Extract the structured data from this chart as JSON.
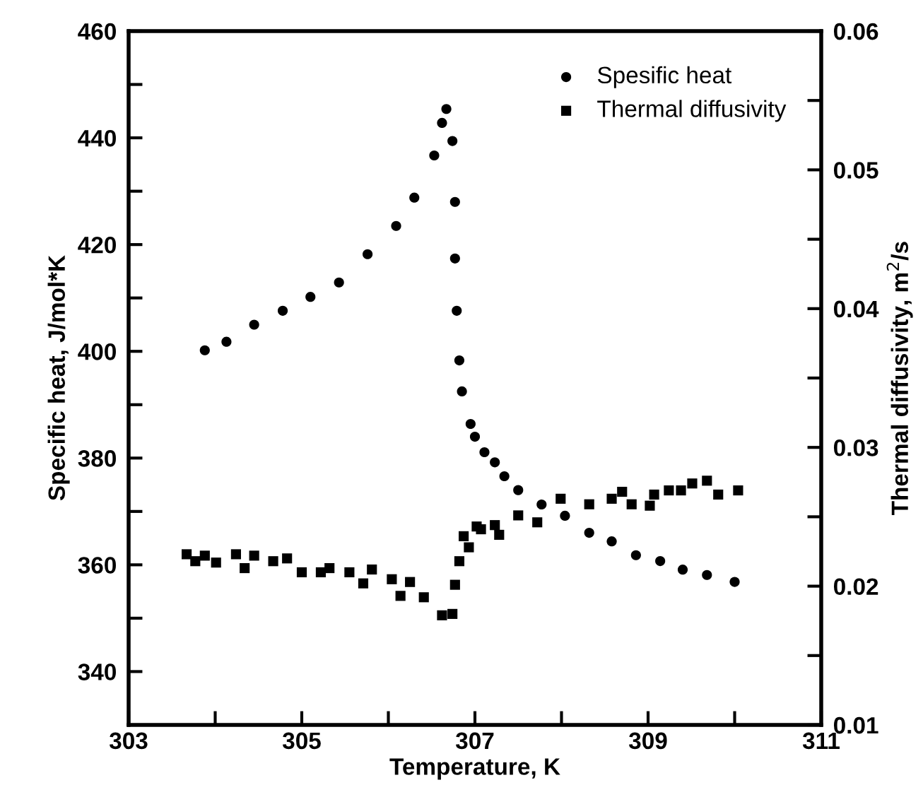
{
  "chart_data": {
    "type": "scatter",
    "xlabel": "Temperature, K",
    "ylabel": "Specific heat, J/mol*K",
    "y2label": "Thermal diffusivity, m$^{2}$/s",
    "xlim": [
      303,
      311
    ],
    "xticks": [
      303,
      {
        "value": 304,
        "label": null
      },
      305,
      {
        "value": 306,
        "label": null
      },
      307,
      {
        "value": 308,
        "label": null
      },
      309,
      {
        "value": 310,
        "label": null
      },
      311
    ],
    "ylim": [
      330,
      460
    ],
    "yticks": [
      340,
      {
        "value": 350,
        "label": null
      },
      360,
      {
        "value": 370,
        "label": null
      },
      380,
      {
        "value": 390,
        "label": null
      },
      400,
      {
        "value": 410,
        "label": null
      },
      420,
      {
        "value": 430,
        "label": null
      },
      440,
      {
        "value": 450,
        "label": null
      },
      460
    ],
    "y2lim": [
      0.01,
      0.06
    ],
    "y2ticks": [
      0.01,
      {
        "value": 0.015,
        "label": null
      },
      0.02,
      {
        "value": 0.025,
        "label": null
      },
      0.03,
      {
        "value": 0.035,
        "label": null
      },
      0.04,
      {
        "value": 0.045,
        "label": null
      },
      0.05,
      {
        "value": 0.055,
        "label": null
      },
      0.06
    ],
    "grid": false,
    "legend": "top right",
    "series": [
      {
        "name": "Spesific heat",
        "color": "#000000",
        "marker": "circle",
        "x": [
          303.88,
          304.13,
          304.45,
          304.78,
          305.1,
          305.43,
          305.76,
          306.09,
          306.3,
          306.53,
          306.62,
          306.67,
          306.74,
          306.77,
          306.77,
          306.79,
          306.82,
          306.85,
          306.95,
          307.0,
          307.11,
          307.23,
          307.34,
          307.5,
          307.77,
          308.04,
          308.32,
          308.58,
          308.86,
          309.14,
          309.4,
          309.68,
          310.0
        ],
        "values": [
          400.2,
          401.8,
          405,
          407.6,
          410.2,
          412.9,
          418.2,
          423.5,
          428.8,
          436.7,
          442.8,
          445.4,
          439.4,
          428,
          417.4,
          407.6,
          398.3,
          392.5,
          386.4,
          384,
          381.1,
          379.2,
          376.6,
          374,
          371.3,
          369.2,
          366,
          364.4,
          361.8,
          360.7,
          359.1,
          358.1,
          356.8
        ]
      },
      {
        "name": "Thermal diffusivity",
        "color": "#000000",
        "marker": "square",
        "axis": "y2",
        "x": [
          303.67,
          303.77,
          303.88,
          304.01,
          304.24,
          304.34,
          304.45,
          304.67,
          304.83,
          305.0,
          305.22,
          305.32,
          305.55,
          305.71,
          305.81,
          306.04,
          306.14,
          306.25,
          306.41,
          306.62,
          306.74,
          306.77,
          306.82,
          306.87,
          306.93,
          307.02,
          307.07,
          307.23,
          307.28,
          307.5,
          307.72,
          307.99,
          308.32,
          308.58,
          308.7,
          308.81,
          309.02,
          309.07,
          309.24,
          309.38,
          309.51,
          309.68,
          309.81,
          310.04
        ],
        "values": [
          0.0223,
          0.0218,
          0.0222,
          0.0217,
          0.0223,
          0.0213,
          0.0222,
          0.0218,
          0.022,
          0.021,
          0.021,
          0.0213,
          0.021,
          0.0202,
          0.0212,
          0.0205,
          0.0193,
          0.0203,
          0.0192,
          0.0179,
          0.018,
          0.0201,
          0.0218,
          0.0236,
          0.0228,
          0.0243,
          0.0241,
          0.0244,
          0.0237,
          0.0251,
          0.0246,
          0.0263,
          0.0259,
          0.0263,
          0.0268,
          0.0259,
          0.0258,
          0.0266,
          0.0269,
          0.0269,
          0.0274,
          0.0276,
          0.0266,
          0.0269
        ]
      }
    ]
  }
}
